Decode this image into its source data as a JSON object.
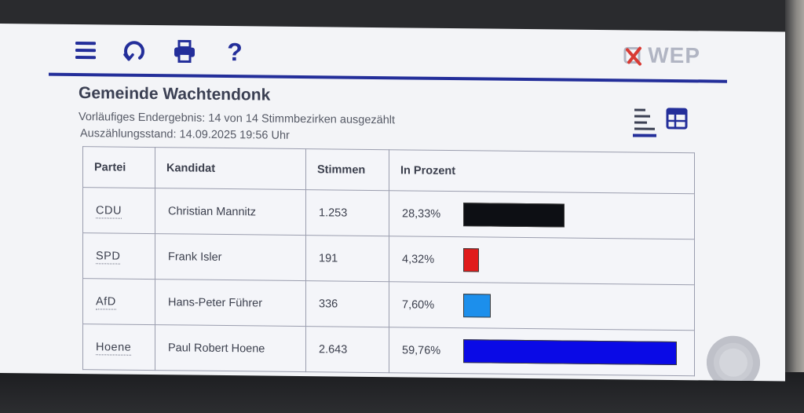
{
  "toolbar": {
    "icons": [
      "menu-icon",
      "refresh-icon",
      "printer-icon",
      "help-icon"
    ],
    "help_label": "?"
  },
  "logo": {
    "text": "WEP",
    "mark_color": "#d83a34"
  },
  "header": {
    "title": "Gemeinde Wachtendonk",
    "status": "Vorläufiges Endergebnis: 14 von 14 Stimmbezirken ausgezählt",
    "timestamp": "Auszählungsstand: 14.09.2025 19:56 Uhr"
  },
  "view_toggle": {
    "list_icon": "list-view-icon",
    "table_icon": "table-view-icon",
    "active": "list"
  },
  "table": {
    "headers": [
      "Partei",
      "Kandidat",
      "Stimmen",
      "In Prozent"
    ],
    "rows": [
      {
        "party": "CDU",
        "candidate": "Christian Mannitz",
        "votes": "1.253",
        "percent_label": "28,33%",
        "percent": 28.33,
        "color": "#0d0f14"
      },
      {
        "party": "SPD",
        "candidate": "Frank Isler",
        "votes": "191",
        "percent_label": "4,32%",
        "percent": 4.32,
        "color": "#e01b1b"
      },
      {
        "party": "AfD",
        "candidate": "Hans-Peter Führer",
        "votes": "336",
        "percent_label": "7,60%",
        "percent": 7.6,
        "color": "#1c8fec"
      },
      {
        "party": "Hoene",
        "candidate": "Paul Robert Hoene",
        "votes": "2.643",
        "percent_label": "59,76%",
        "percent": 59.76,
        "color": "#0a0ae6"
      }
    ]
  },
  "colors": {
    "accent": "#232e9a",
    "text": "#3b4053"
  }
}
